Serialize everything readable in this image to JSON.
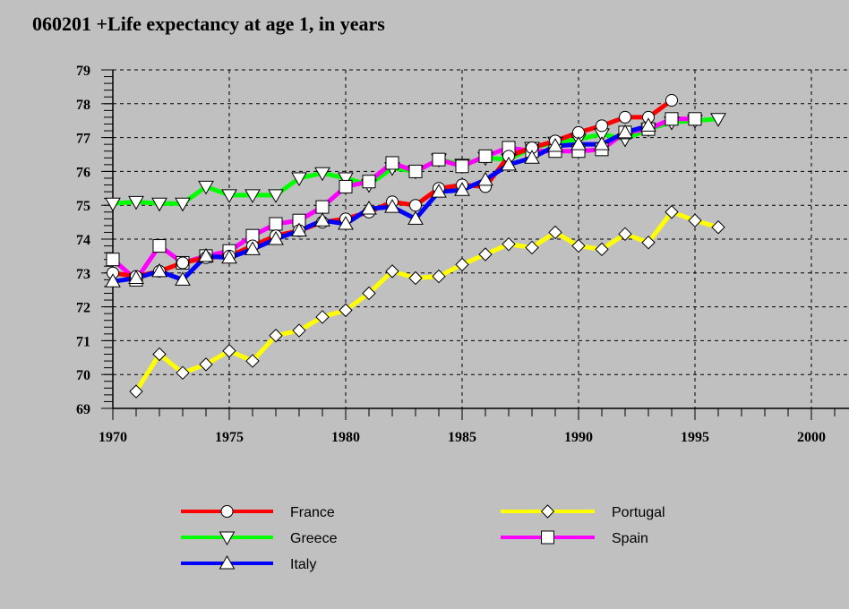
{
  "chart_data": {
    "type": "line",
    "title": "060201 +Life expectancy at age 1, in years",
    "xlabel": "",
    "ylabel": "",
    "xlim": [
      1970,
      2002.5
    ],
    "ylim": [
      69,
      79
    ],
    "x_ticks": [
      1970,
      1975,
      1980,
      1985,
      1990,
      1995,
      2000
    ],
    "x_tick_labels": [
      "1970",
      "1975",
      "1980",
      "1985",
      "1990",
      "1995",
      "2000"
    ],
    "y_ticks": [
      69,
      70,
      71,
      72,
      73,
      74,
      75,
      76,
      77,
      78,
      79
    ],
    "y_tick_labels": [
      "69",
      "70",
      "71",
      "72",
      "73",
      "74",
      "75",
      "76",
      "77",
      "78",
      "79"
    ],
    "grid": true,
    "legend_position": "bottom",
    "series": [
      {
        "name": "France",
        "color": "#ff0000",
        "marker": "circle",
        "x": [
          1970,
          1971,
          1972,
          1973,
          1974,
          1975,
          1976,
          1977,
          1978,
          1979,
          1980,
          1981,
          1982,
          1983,
          1984,
          1985,
          1986,
          1987,
          1988,
          1989,
          1990,
          1991,
          1992,
          1993,
          1994
        ],
        "values": [
          73.0,
          72.9,
          73.05,
          73.3,
          73.45,
          73.5,
          73.8,
          74.1,
          74.25,
          74.5,
          74.6,
          74.8,
          75.1,
          75.0,
          75.5,
          75.6,
          75.55,
          76.45,
          76.7,
          76.9,
          77.15,
          77.35,
          77.6,
          77.6,
          78.1
        ]
      },
      {
        "name": "Greece",
        "color": "#00ff00",
        "marker": "triangle-down",
        "x": [
          1970,
          1971,
          1972,
          1973,
          1974,
          1975,
          1976,
          1977,
          1978,
          1979,
          1980,
          1981,
          1982,
          1983,
          1984,
          1985,
          1986,
          1987,
          1988,
          1989,
          1990,
          1991,
          1992,
          1993,
          1994,
          1995,
          1996
        ],
        "values": [
          75.05,
          75.1,
          75.05,
          75.05,
          75.55,
          75.3,
          75.3,
          75.3,
          75.8,
          75.95,
          75.8,
          75.6,
          76.1,
          76.0,
          76.35,
          76.2,
          76.4,
          76.35,
          76.7,
          76.85,
          76.95,
          77.1,
          76.95,
          77.25,
          77.45,
          77.5,
          77.55
        ]
      },
      {
        "name": "Italy",
        "color": "#0000ff",
        "marker": "triangle-up",
        "x": [
          1970,
          1971,
          1972,
          1973,
          1974,
          1975,
          1976,
          1977,
          1978,
          1979,
          1980,
          1981,
          1982,
          1983,
          1984,
          1985,
          1986,
          1987,
          1988,
          1989,
          1990,
          1991,
          1992,
          1993
        ],
        "values": [
          72.75,
          72.85,
          73.05,
          72.8,
          73.5,
          73.45,
          73.7,
          74.0,
          74.25,
          74.55,
          74.45,
          74.9,
          74.95,
          74.6,
          75.4,
          75.45,
          75.75,
          76.2,
          76.4,
          76.75,
          76.8,
          76.8,
          77.15,
          77.35
        ]
      },
      {
        "name": "Portugal",
        "color": "#ffff00",
        "marker": "diamond",
        "x": [
          1971,
          1972,
          1973,
          1974,
          1975,
          1976,
          1977,
          1978,
          1979,
          1980,
          1981,
          1982,
          1983,
          1984,
          1985,
          1986,
          1987,
          1988,
          1989,
          1990,
          1991,
          1992,
          1993,
          1994,
          1995,
          1996
        ],
        "values": [
          69.5,
          70.6,
          70.05,
          70.3,
          70.7,
          70.4,
          71.15,
          71.3,
          71.7,
          71.9,
          72.4,
          73.05,
          72.85,
          72.9,
          73.25,
          73.55,
          73.85,
          73.75,
          74.2,
          73.8,
          73.7,
          74.15,
          73.9,
          74.8,
          74.55,
          74.35
        ]
      },
      {
        "name": "Spain",
        "color": "#ff00ff",
        "marker": "square",
        "x": [
          1970,
          1971,
          1972,
          1973,
          1974,
          1975,
          1976,
          1977,
          1978,
          1979,
          1980,
          1981,
          1982,
          1983,
          1984,
          1985,
          1986,
          1987,
          1988,
          1989,
          1990,
          1991,
          1992,
          1993,
          1994,
          1995
        ],
        "values": [
          73.4,
          72.8,
          73.8,
          73.3,
          73.5,
          73.65,
          74.1,
          74.45,
          74.55,
          74.95,
          75.55,
          75.7,
          76.25,
          76.0,
          76.35,
          76.15,
          76.45,
          76.7,
          76.6,
          76.6,
          76.6,
          76.65,
          77.15,
          77.25,
          77.55,
          77.55
        ]
      }
    ],
    "draw_order": [
      "Greece",
      "Spain",
      "France",
      "Italy",
      "Portugal"
    ]
  }
}
